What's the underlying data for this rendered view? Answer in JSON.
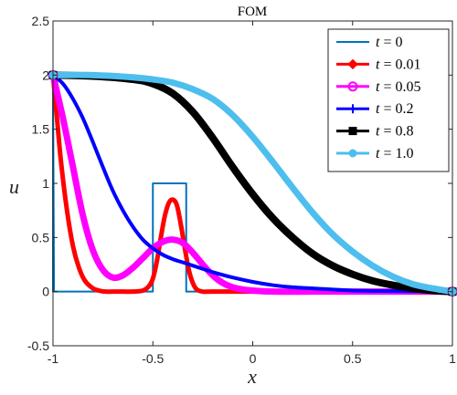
{
  "chart_data": {
    "type": "line",
    "title": "FOM",
    "xlabel": "x",
    "ylabel": "u",
    "xlim": [
      -1,
      1
    ],
    "ylim": [
      -0.5,
      2.5
    ],
    "xticks": [
      -1,
      -0.5,
      0,
      0.5,
      1
    ],
    "xtick_labels": [
      "-1",
      "-0.5",
      "0",
      "0.5",
      "1"
    ],
    "yticks": [
      -0.5,
      0,
      0.5,
      1,
      1.5,
      2,
      2.5
    ],
    "ytick_labels": [
      "-0.5",
      "0",
      "0.5",
      "1",
      "1.5",
      "2",
      "2.5"
    ],
    "grid": false,
    "legend_position": "top-right",
    "series": [
      {
        "name": "t = 0",
        "name_parts": [
          "t",
          " = 0"
        ],
        "color": "#0072BD",
        "marker": "none",
        "width": 2,
        "x": [
          -1,
          -1,
          -0.995,
          -0.5,
          -0.5,
          -0.333,
          -0.333,
          1
        ],
        "y": [
          0,
          2,
          0,
          0,
          1,
          1,
          0,
          0
        ]
      },
      {
        "name": "t = 0.01",
        "name_parts": [
          "t",
          " = 0.01"
        ],
        "color": "#FF0000",
        "marker": "diamond",
        "width": 5,
        "x": [
          -1,
          -0.98,
          -0.96,
          -0.93,
          -0.9,
          -0.87,
          -0.84,
          -0.8,
          -0.77,
          -0.74,
          -0.7,
          -0.65,
          -0.6,
          -0.55,
          -0.52,
          -0.5,
          -0.48,
          -0.46,
          -0.44,
          -0.42,
          -0.4,
          -0.38,
          -0.36,
          -0.34,
          -0.32,
          -0.3,
          -0.28,
          -0.25,
          -0.2,
          0,
          0.5,
          1
        ],
        "y": [
          2,
          1.6,
          1.2,
          0.75,
          0.42,
          0.22,
          0.1,
          0.03,
          0.01,
          0,
          0,
          0,
          0,
          0.01,
          0.05,
          0.12,
          0.28,
          0.5,
          0.7,
          0.82,
          0.85,
          0.8,
          0.62,
          0.4,
          0.2,
          0.08,
          0.02,
          0,
          0,
          0,
          0,
          0
        ]
      },
      {
        "name": "t = 0.05",
        "name_parts": [
          "t",
          " = 0.05"
        ],
        "color": "#FF00FF",
        "marker": "circle",
        "width": 7,
        "x": [
          -1,
          -0.95,
          -0.9,
          -0.85,
          -0.8,
          -0.75,
          -0.7,
          -0.65,
          -0.6,
          -0.55,
          -0.5,
          -0.45,
          -0.4,
          -0.35,
          -0.3,
          -0.25,
          -0.2,
          -0.15,
          -0.1,
          -0.05,
          0,
          0.1,
          0.3,
          0.5,
          1
        ],
        "y": [
          2,
          1.6,
          1.15,
          0.7,
          0.38,
          0.2,
          0.13,
          0.15,
          0.22,
          0.31,
          0.4,
          0.46,
          0.48,
          0.45,
          0.36,
          0.25,
          0.15,
          0.08,
          0.04,
          0.02,
          0.01,
          0,
          0,
          0,
          0
        ]
      },
      {
        "name": "t = 0.2",
        "name_parts": [
          "t",
          " = 0.2"
        ],
        "color": "#0000FF",
        "marker": "plus",
        "width": 4,
        "x": [
          -1,
          -0.95,
          -0.9,
          -0.85,
          -0.8,
          -0.75,
          -0.7,
          -0.65,
          -0.6,
          -0.55,
          -0.5,
          -0.45,
          -0.4,
          -0.35,
          -0.3,
          -0.25,
          -0.2,
          -0.1,
          0,
          0.1,
          0.2,
          0.3,
          0.5,
          0.7,
          1
        ],
        "y": [
          2,
          1.92,
          1.78,
          1.6,
          1.38,
          1.15,
          0.93,
          0.75,
          0.6,
          0.48,
          0.4,
          0.34,
          0.3,
          0.27,
          0.24,
          0.21,
          0.18,
          0.13,
          0.09,
          0.06,
          0.04,
          0.03,
          0.01,
          0.005,
          0
        ]
      },
      {
        "name": "t = 0.8",
        "name_parts": [
          "t",
          " = 0.8"
        ],
        "color": "#000000",
        "marker": "square",
        "width": 8,
        "x": [
          -1,
          -0.8,
          -0.6,
          -0.5,
          -0.4,
          -0.3,
          -0.2,
          -0.1,
          0,
          0.1,
          0.2,
          0.3,
          0.4,
          0.5,
          0.6,
          0.7,
          0.8,
          0.9,
          1
        ],
        "y": [
          2,
          1.99,
          1.96,
          1.92,
          1.83,
          1.66,
          1.42,
          1.15,
          0.9,
          0.68,
          0.5,
          0.35,
          0.24,
          0.16,
          0.1,
          0.06,
          0.03,
          0.01,
          0
        ]
      },
      {
        "name": "t = 1.0",
        "name_parts": [
          "t",
          " = 1.0"
        ],
        "color": "#4DBEEE",
        "marker": "dot",
        "width": 7,
        "x": [
          -1,
          -0.8,
          -0.6,
          -0.5,
          -0.4,
          -0.3,
          -0.2,
          -0.1,
          0,
          0.1,
          0.2,
          0.3,
          0.4,
          0.5,
          0.6,
          0.7,
          0.8,
          0.9,
          1
        ],
        "y": [
          2,
          2,
          1.98,
          1.96,
          1.93,
          1.87,
          1.78,
          1.63,
          1.43,
          1.2,
          0.96,
          0.73,
          0.53,
          0.37,
          0.24,
          0.14,
          0.07,
          0.03,
          0
        ]
      }
    ]
  }
}
